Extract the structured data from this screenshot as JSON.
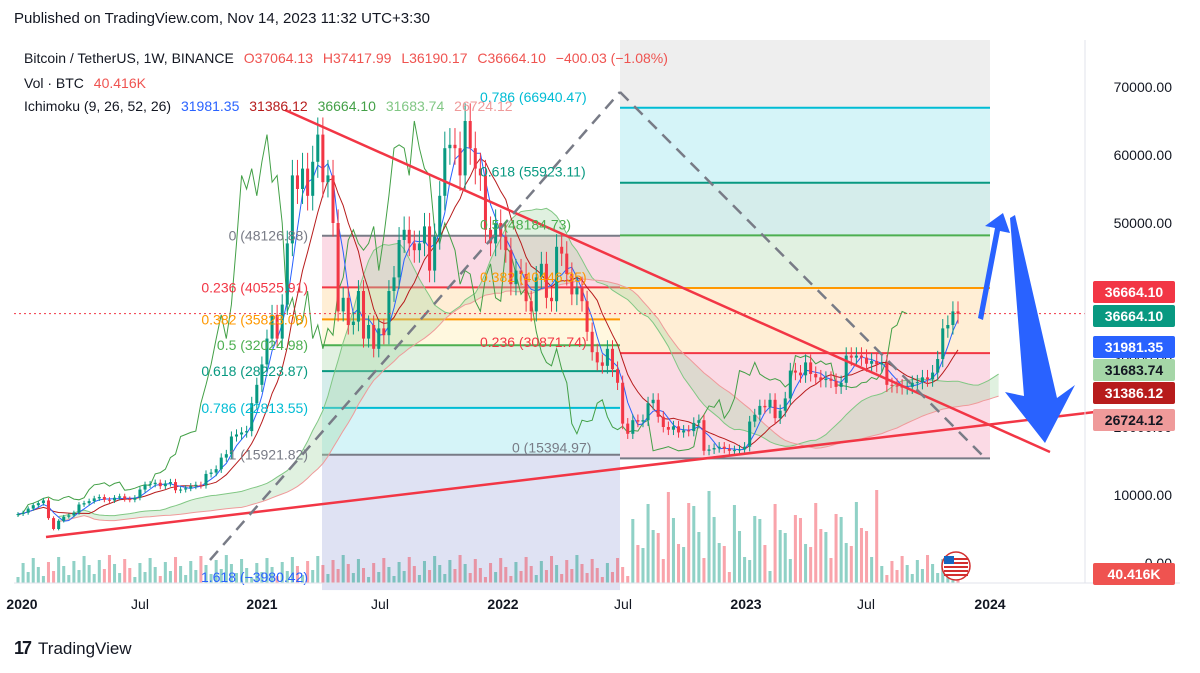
{
  "header": {
    "published": "Published on TradingView.com, Nov 14, 2023 11:32 UTC+3:30"
  },
  "legend": {
    "symbol": "Bitcoin / TetherUS, 1W, BINANCE",
    "open": "O37064.13",
    "high": "H37417.99",
    "low": "L36190.17",
    "close": "C36664.10",
    "change": "−400.03 (−1.08%)",
    "volume_label": "Vol · BTC",
    "volume_value": "40.416K",
    "ichimoku_label": "Ichimoku (9, 26, 52, 26)",
    "ichimoku_values": [
      "31981.35",
      "31386.12",
      "36664.10",
      "31683.74",
      "26724.12"
    ]
  },
  "price_tags": [
    {
      "text": "36664.10",
      "color": "#f23645"
    },
    {
      "text": "36664.10",
      "color": "#089981"
    },
    {
      "text": "31981.35",
      "color": "#2962ff"
    },
    {
      "text": "31683.74",
      "color": "#a5d6a7"
    },
    {
      "text": "31386.12",
      "color": "#b71c1c"
    },
    {
      "text": "26724.12",
      "color": "#ef9a9a"
    },
    {
      "text": "40.416K",
      "color": "#ef5350"
    }
  ],
  "footer": {
    "brand": "TradingView",
    "mark": "17"
  },
  "colors": {
    "up": "#089981",
    "down": "#f23645",
    "tenkan": "#2962ff",
    "kijun": "#b71c1c",
    "lagging": "#43a047",
    "trendline": "#f23645",
    "arrow": "#2962ff"
  },
  "chart_data": {
    "type": "candlestick",
    "title": "Bitcoin / TetherUS, 1W, BINANCE",
    "y_axis_ticks": [
      "70000.00",
      "60000.00",
      "50000.00",
      "40000.00",
      "30000.00",
      "20000.00",
      "10000.00",
      "0.00"
    ],
    "x_axis_ticks": [
      "2020",
      "Jul",
      "2021",
      "Jul",
      "2022",
      "Jul",
      "2023",
      "Jul",
      "2024"
    ],
    "ylim": [
      0,
      72000
    ],
    "current_price": 36664.1,
    "fib_retracement_1": {
      "levels": [
        {
          "label": "0 (48126.88)",
          "value": 48126.88
        },
        {
          "label": "0.236 (40525.91)",
          "value": 40525.91
        },
        {
          "label": "0.382 (35823.08)",
          "value": 35823.08
        },
        {
          "label": "0.5 (32024.98)",
          "value": 32024.98
        },
        {
          "label": "0.618 (28223.87)",
          "value": 28223.87
        },
        {
          "label": "0.786 (22813.55)",
          "value": 22813.55
        },
        {
          "label": "1 (15921.82)",
          "value": 15921.82
        },
        {
          "label": "1.618 (−3980.42)",
          "value": -3980.42
        }
      ]
    },
    "fib_retracement_2": {
      "levels": [
        {
          "label": "0.786 (66940.47)",
          "value": 66940.47
        },
        {
          "label": "0.618 (55923.11)",
          "value": 55923.11
        },
        {
          "label": "0.5 (48184.73)",
          "value": 48184.73
        },
        {
          "label": "0.382 (40446.35)",
          "value": 40446.35
        },
        {
          "label": "0.236 (30871.74)",
          "value": 30871.74
        },
        {
          "label": "0 (15394.97)",
          "value": 15394.97
        }
      ]
    },
    "closes": [
      7200,
      7400,
      8000,
      8500,
      8800,
      9200,
      6600,
      5000,
      6200,
      6800,
      7000,
      7400,
      8600,
      8800,
      9100,
      9500,
      9700,
      9300,
      9200,
      9600,
      9800,
      9400,
      9300,
      9600,
      10800,
      11500,
      11600,
      11800,
      11300,
      11700,
      11900,
      10700,
      10800,
      11000,
      11300,
      11500,
      11400,
      13100,
      13300,
      13800,
      15500,
      16000,
      18600,
      18900,
      19200,
      19400,
      23500,
      26200,
      29200,
      33000,
      36500,
      33000,
      38000,
      47000,
      57000,
      55000,
      58000,
      54000,
      59000,
      63000,
      56000,
      57000,
      50000,
      37000,
      39000,
      35000,
      35500,
      40000,
      33000,
      35000,
      31500,
      34500,
      33500,
      40000,
      42000,
      47500,
      49000,
      47000,
      46000,
      47000,
      49500,
      43000,
      48000,
      54000,
      61000,
      61500,
      61000,
      57000,
      65000,
      61000,
      58000,
      57000,
      49000,
      47000,
      50000,
      48000,
      46000,
      41000,
      43000,
      42500,
      38500,
      37000,
      42000,
      44000,
      39000,
      38500,
      46500,
      45500,
      42500,
      39500,
      40500,
      38500,
      34000,
      31000,
      29500,
      29000,
      31500,
      28500,
      26500,
      20500,
      19000,
      21000,
      20800,
      21000,
      23500,
      24000,
      21500,
      20000,
      19600,
      20100,
      19200,
      19500,
      19400,
      20600,
      21000,
      16500,
      16700,
      16900,
      17100,
      16800,
      16500,
      16600,
      16700,
      17100,
      20800,
      21800,
      23100,
      22900,
      24000,
      21300,
      22400,
      24200,
      28300,
      28000,
      27600,
      29500,
      27800,
      27300,
      26900,
      27100,
      26800,
      25900,
      26500,
      30500,
      30200,
      30500,
      30200,
      29300,
      29700,
      29200,
      29400,
      26200,
      26100,
      26000,
      25800,
      25900,
      26500,
      26600,
      27300,
      27000,
      28000,
      30000,
      34500,
      35000,
      37000,
      36664
    ]
  }
}
